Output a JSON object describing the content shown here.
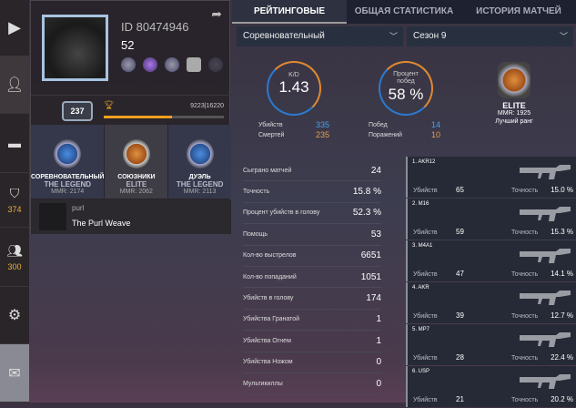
{
  "sidebar": {
    "items": [
      {
        "icon": "play-icon"
      },
      {
        "icon": "user-icon"
      },
      {
        "icon": "pistol-icon"
      },
      {
        "icon": "rank-badge-icon",
        "count": "374"
      },
      {
        "icon": "group-icon",
        "count": "300"
      },
      {
        "icon": "gear-icon"
      },
      {
        "icon": "mail-icon"
      }
    ]
  },
  "profile": {
    "id": "ID 80474946",
    "level": "52",
    "xp_level": "237",
    "xp": "9223|16220",
    "xp_progress": 0.57,
    "ranks": [
      {
        "mode": "СОРЕВНОВАТЕЛЬНЫЙ",
        "rank": "THE LEGEND",
        "mmr": "MMR: 2174"
      },
      {
        "mode": "СОЮЗНИКИ",
        "rank": "ELITE",
        "mmr": "MMR: 2062"
      },
      {
        "mode": "ДУЭЛЬ",
        "rank": "THE LEGEND",
        "mmr": "MMR: 2113"
      }
    ],
    "clan": {
      "tag": "purl",
      "name": "The Purl Weave"
    }
  },
  "tabs": [
    {
      "label": "РЕЙТИНГОВЫЕ",
      "active": true
    },
    {
      "label": "ОБЩАЯ СТАТИСТИКА"
    },
    {
      "label": "ИСТОРИЯ МАТЧЕЙ"
    }
  ],
  "filters": {
    "mode": "Соревновательный",
    "season": "Сезон 9"
  },
  "kd": {
    "label": "K/D",
    "value": "1.43",
    "kills_label": "Убийств",
    "kills": "335",
    "deaths_label": "Смертей",
    "deaths": "235"
  },
  "winrate": {
    "label": "Процент побед",
    "value": "58 %",
    "wins_label": "Побед",
    "wins": "14",
    "losses_label": "Поражений",
    "losses": "10"
  },
  "best_rank": {
    "rank": "ELITE",
    "mmr": "MMR: 1925",
    "label": "Лучший ранг"
  },
  "stats": [
    {
      "label": "Сыграно матчей",
      "value": "24"
    },
    {
      "label": "Точность",
      "value": "15.8 %"
    },
    {
      "label": "Процент убийств в голову",
      "value": "52.3 %"
    },
    {
      "label": "Помощь",
      "value": "53"
    },
    {
      "label": "Кол-во выстрелов",
      "value": "6651"
    },
    {
      "label": "Кол-во попаданий",
      "value": "1051"
    },
    {
      "label": "Убийств в голову",
      "value": "174"
    },
    {
      "label": "Убийства Гранатой",
      "value": "1"
    },
    {
      "label": "Убийства Огнем",
      "value": "1"
    },
    {
      "label": "Убийства Ножом",
      "value": "0"
    },
    {
      "label": "Мультикиллы",
      "value": "0"
    }
  ],
  "weapons_labels": {
    "kills": "Убийств",
    "accuracy": "Точность"
  },
  "weapons": [
    {
      "name": "1. AKR12",
      "kills": "65",
      "accuracy": "15.0 %"
    },
    {
      "name": "2. M16",
      "kills": "59",
      "accuracy": "15.3 %"
    },
    {
      "name": "3. M4A1",
      "kills": "47",
      "accuracy": "14.1 %"
    },
    {
      "name": "4. AKR",
      "kills": "39",
      "accuracy": "12.7 %"
    },
    {
      "name": "5. MP7",
      "kills": "28",
      "accuracy": "22.4 %"
    },
    {
      "name": "6. USP",
      "kills": "21",
      "accuracy": "20.2 %"
    }
  ]
}
